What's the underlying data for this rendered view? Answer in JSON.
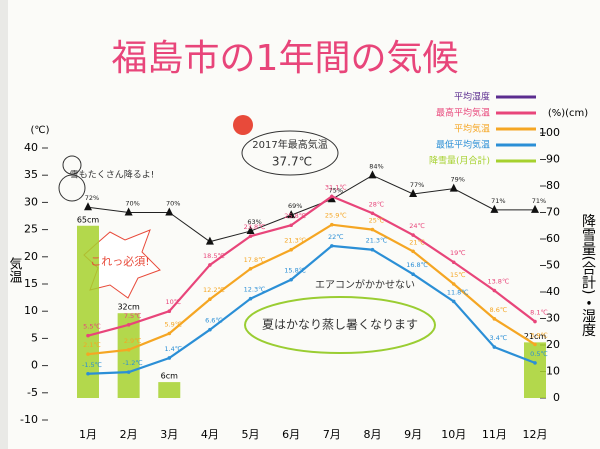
{
  "chart_data": {
    "type": "combo",
    "title": "福島市の1年間の気候",
    "y_label": "気温",
    "y_unit": "(℃)",
    "y2_unit": "(%)(cm)",
    "y2_label": "降雪量(合計)・湿度",
    "categories": [
      "1月",
      "2月",
      "3月",
      "4月",
      "5月",
      "6月",
      "7月",
      "8月",
      "9月",
      "10月",
      "11月",
      "12月"
    ],
    "ylim": [
      -10,
      40
    ],
    "yticks": [
      -10,
      -5,
      0,
      5,
      10,
      15,
      20,
      25,
      30,
      35,
      40
    ],
    "y2lim": [
      0,
      100
    ],
    "y2ticks": [
      0,
      10,
      20,
      30,
      40,
      50,
      60,
      70,
      80,
      90,
      100
    ],
    "legend": "top-right",
    "series": [
      {
        "name": "平均湿度",
        "type": "line",
        "axis": "y2",
        "color": "#222222",
        "legend_color": "#5b2c8f",
        "values": [
          72,
          70,
          70,
          59,
          63,
          69,
          75,
          84,
          77,
          79,
          71,
          71
        ],
        "value_labels": [
          "72%",
          "70%",
          "70%",
          null,
          "63%",
          "69%",
          "75%",
          "84%",
          "77%",
          "79%",
          "71%",
          "71%"
        ]
      },
      {
        "name": "最高平均気温",
        "type": "line",
        "color": "#e8457a",
        "values": [
          5.5,
          7.5,
          10,
          18.5,
          23.8,
          25.8,
          31.1,
          28,
          24,
          19,
          13.8,
          8.1
        ],
        "value_labels": [
          "5.5℃",
          "7.5℃",
          "10℃",
          "18.5℃",
          "23.8℃",
          "25.8℃",
          "31.1℃",
          "28℃",
          "24℃",
          "19℃",
          "13.8℃",
          "8.1℃"
        ]
      },
      {
        "name": "平均気温",
        "type": "line",
        "color": "#f5a623",
        "values": [
          2.1,
          2.9,
          5.9,
          12.2,
          17.8,
          21.3,
          25.9,
          25,
          21,
          15,
          8.6,
          3.9
        ],
        "value_labels": [
          "2.1℃",
          "2.9℃",
          "5.9℃",
          "12.2℃",
          "17.8℃",
          "21.3℃",
          "25.9℃",
          "25℃",
          "21℃",
          "15℃",
          "8.6℃",
          "3.9℃"
        ]
      },
      {
        "name": "最低平均気温",
        "type": "line",
        "color": "#2b8fd6",
        "values": [
          -1.5,
          -1.2,
          1.4,
          6.6,
          12.3,
          15.8,
          22,
          21.3,
          16.8,
          11.8,
          3.4,
          0.5
        ],
        "value_labels": [
          "-1.5℃",
          "-1.2℃",
          "1.4℃",
          "6.6℃",
          "12.3℃",
          "15.8℃",
          "22℃",
          "21.3℃",
          "16.8℃",
          "11.8℃",
          "3.4℃",
          "0.5℃"
        ]
      },
      {
        "name": "降雪量(月合計)",
        "type": "bar",
        "axis": "y2",
        "color": "#a6d12e",
        "values": [
          65,
          32,
          6,
          null,
          null,
          null,
          null,
          null,
          null,
          null,
          null,
          21
        ],
        "value_labels": [
          "65cm",
          "32cm",
          "6cm",
          null,
          null,
          null,
          null,
          null,
          null,
          null,
          null,
          "21cm"
        ]
      }
    ],
    "annotations": [
      "2017年最高気温",
      "37.7℃",
      "雪もたくさん降るよ!",
      "これっ必須!",
      "エアコンがかかせない",
      "夏はかなり蒸し暑くなります"
    ]
  }
}
